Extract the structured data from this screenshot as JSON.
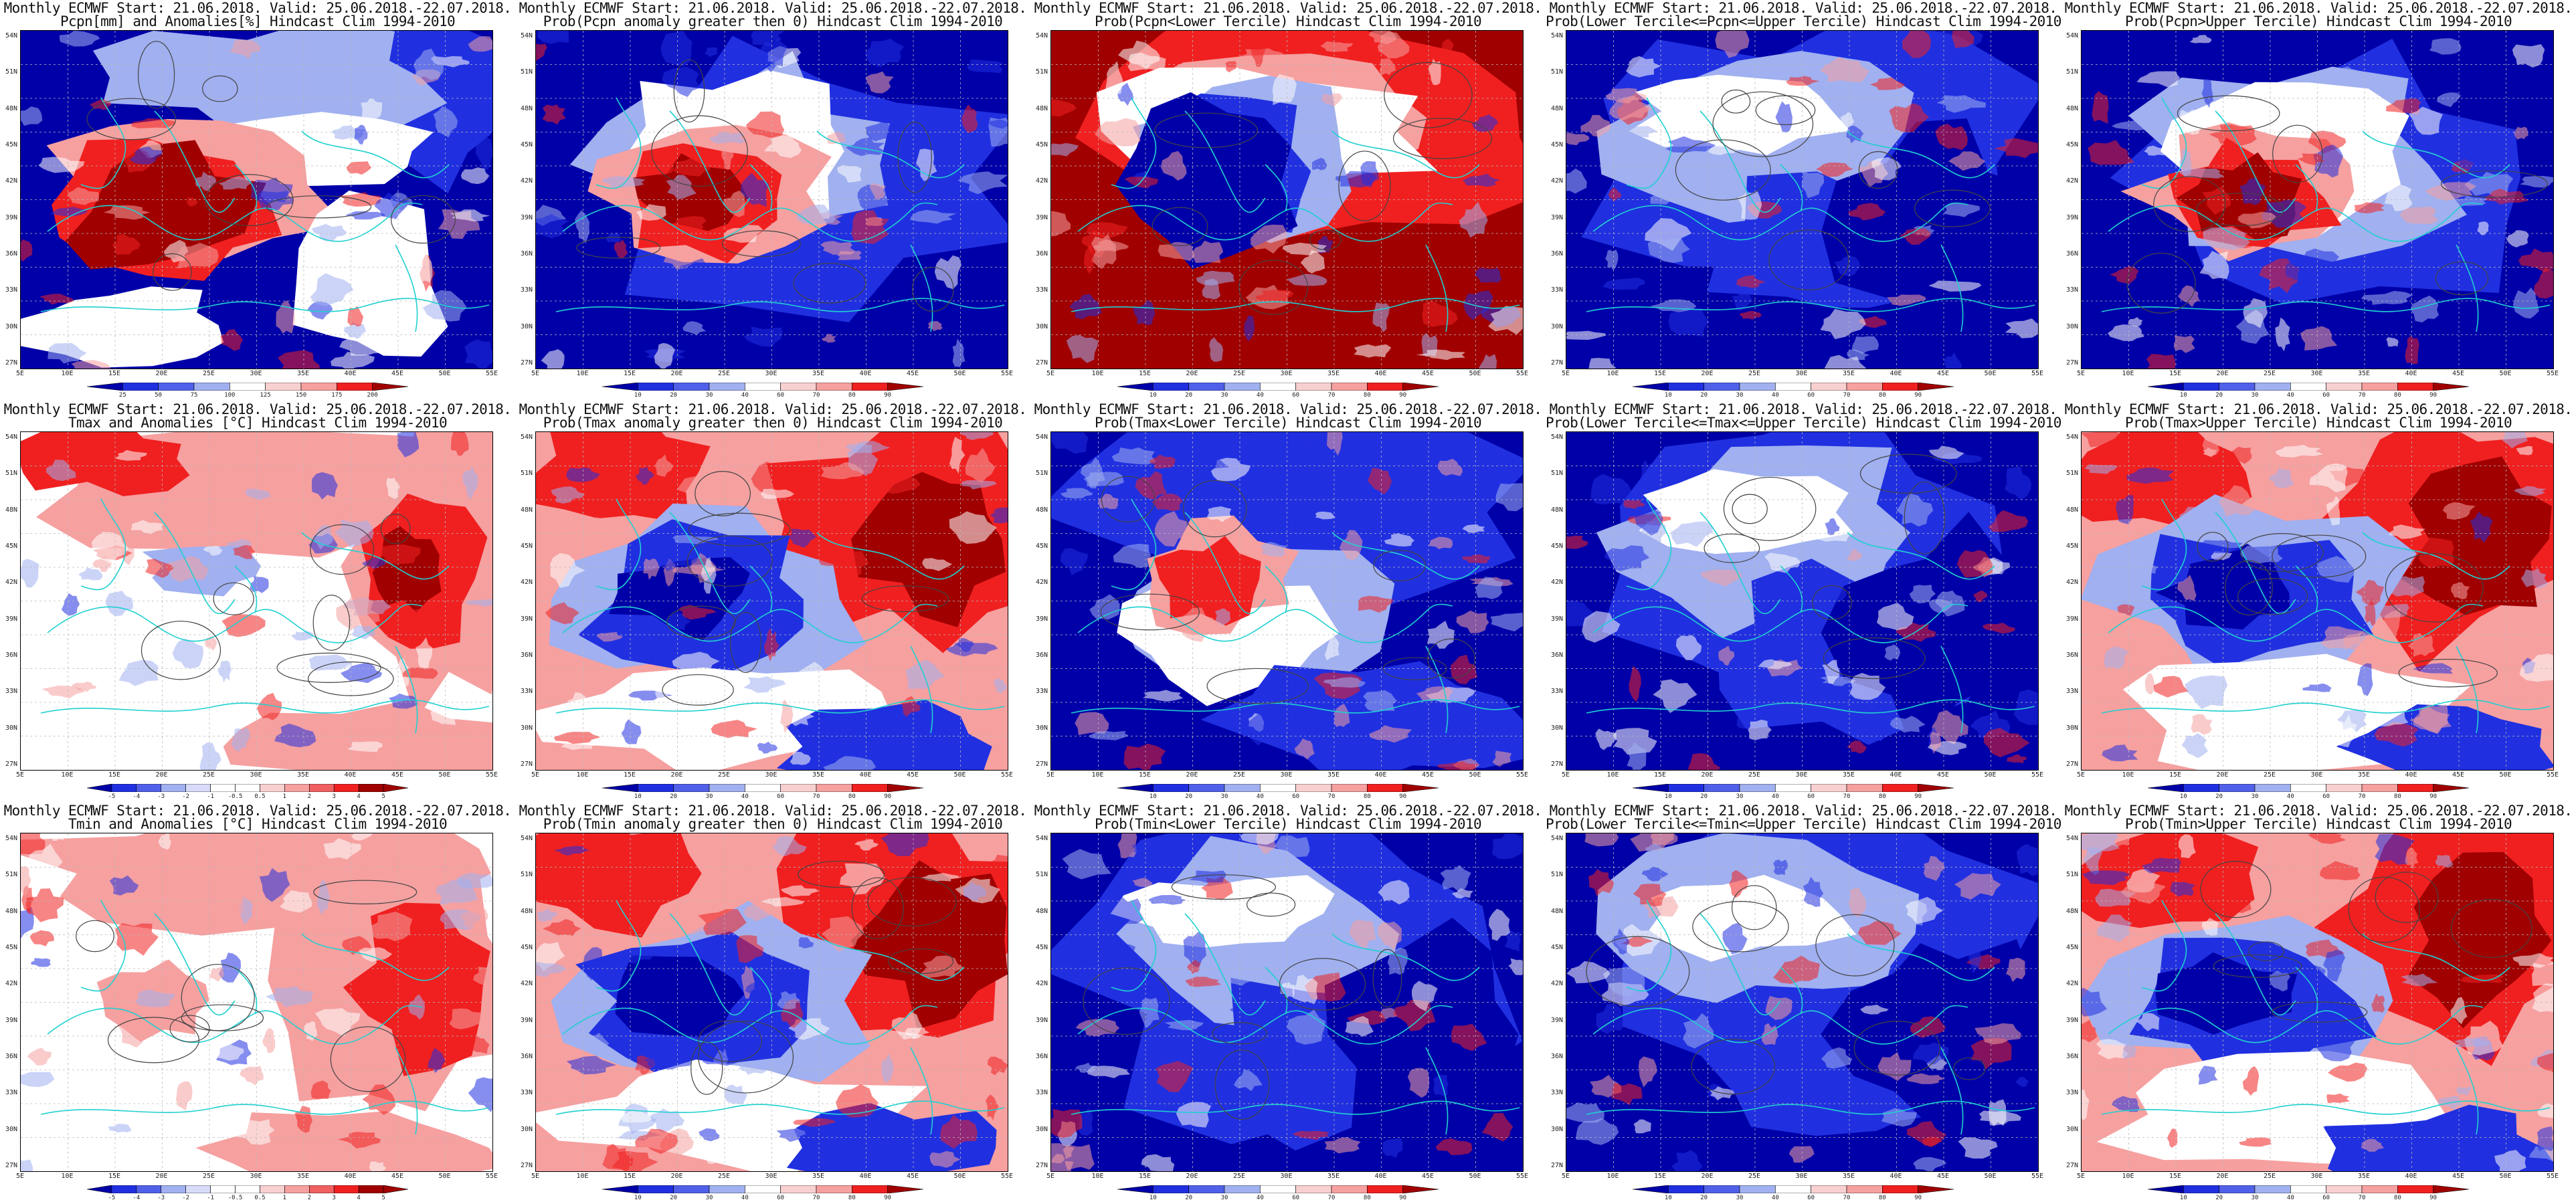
{
  "header": "Monthly ECMWF Start: 21.06.2018. Valid: 25.06.2018.-22.07.2018.",
  "lat_labels": [
    "54N",
    "51N",
    "48N",
    "45N",
    "42N",
    "39N",
    "36N",
    "33N",
    "30N",
    "27N"
  ],
  "lon_labels": [
    "5E",
    "10E",
    "15E",
    "20E",
    "25E",
    "30E",
    "35E",
    "40E",
    "45E",
    "50E",
    "55E"
  ],
  "colors": {
    "red_dark": "#a00000",
    "red": "#f02020",
    "red_light": "#f6a0a0",
    "white": "#ffffff",
    "blue_light": "#a0b0f0",
    "blue": "#2030e0",
    "blue_dark": "#0000a8",
    "coast": "#20d0d0",
    "contour": "#444444"
  },
  "panels": [
    {
      "title": "Pcpn[mm] and Anomalies[%] Hindcast Clim 1994-2010",
      "scheme": "precip_anom",
      "cbar": [
        "25",
        "50",
        "75",
        "100",
        "125",
        "150",
        "175",
        "200"
      ]
    },
    {
      "title": "Prob(Pcpn anomaly greater then 0) Hindcast Clim 1994-2010",
      "scheme": "red_center",
      "cbar": [
        "10",
        "20",
        "30",
        "40",
        "60",
        "70",
        "80",
        "90"
      ]
    },
    {
      "title": "Prob(Pcpn<Lower Tercile) Hindcast Clim 1994-2010",
      "scheme": "blue_center",
      "cbar": [
        "10",
        "20",
        "30",
        "40",
        "60",
        "70",
        "80",
        "90"
      ]
    },
    {
      "title": "Prob(Lower Tercile<=Pcpn<=Upper Tercile) Hindcast Clim 1994-2010",
      "scheme": "blue_all",
      "cbar": [
        "10",
        "20",
        "30",
        "40",
        "60",
        "70",
        "80",
        "90"
      ]
    },
    {
      "title": "Prob(Pcpn>Upper Tercile) Hindcast Clim 1994-2010",
      "scheme": "red_center",
      "cbar": [
        "10",
        "20",
        "30",
        "40",
        "60",
        "70",
        "80",
        "90"
      ]
    },
    {
      "title": "Tmax and Anomalies [°C] Hindcast Clim 1994-2010",
      "scheme": "temp_anom",
      "cbar": [
        "-5",
        "-4",
        "-3",
        "-2",
        "-1",
        "-0.5",
        "0.5",
        "1",
        "2",
        "3",
        "4",
        "5"
      ]
    },
    {
      "title": "Prob(Tmax anomaly greater then 0) Hindcast Clim 1994-2010",
      "scheme": "mixed_red",
      "cbar": [
        "10",
        "20",
        "30",
        "40",
        "60",
        "70",
        "80",
        "90"
      ]
    },
    {
      "title": "Prob(Tmax<Lower Tercile) Hindcast Clim 1994-2010",
      "scheme": "mixed_blue",
      "cbar": [
        "10",
        "20",
        "30",
        "40",
        "60",
        "70",
        "80",
        "90"
      ]
    },
    {
      "title": "Prob(Lower Tercile<=Tmax<=Upper Tercile) Hindcast Clim 1994-2010",
      "scheme": "blue_all",
      "cbar": [
        "10",
        "20",
        "30",
        "40",
        "60",
        "70",
        "80",
        "90"
      ]
    },
    {
      "title": "Prob(Tmax>Upper Tercile) Hindcast Clim 1994-2010",
      "scheme": "mixed_red",
      "cbar": [
        "10",
        "20",
        "30",
        "40",
        "60",
        "70",
        "80",
        "90"
      ]
    },
    {
      "title": "Tmin and Anomalies [°C] Hindcast Clim 1994-2010",
      "scheme": "temp_anom_light",
      "cbar": [
        "-5",
        "-4",
        "-3",
        "-2",
        "-1",
        "-0.5",
        "0.5",
        "1",
        "2",
        "3",
        "4",
        "5"
      ]
    },
    {
      "title": "Prob(Tmin anomaly greater then 0) Hindcast Clim 1994-2010",
      "scheme": "mixed_red",
      "cbar": [
        "10",
        "20",
        "30",
        "40",
        "60",
        "70",
        "80",
        "90"
      ]
    },
    {
      "title": "Prob(Tmin<Lower Tercile) Hindcast Clim 1994-2010",
      "scheme": "blue_all",
      "cbar": [
        "10",
        "20",
        "30",
        "40",
        "60",
        "70",
        "80",
        "90"
      ]
    },
    {
      "title": "Prob(Lower Tercile<=Tmin<=Upper Tercile) Hindcast Clim 1994-2010",
      "scheme": "blue_all",
      "cbar": [
        "10",
        "20",
        "30",
        "40",
        "60",
        "70",
        "80",
        "90"
      ]
    },
    {
      "title": "Prob(Tmin>Upper Tercile) Hindcast Clim 1994-2010",
      "scheme": "mixed_red",
      "cbar": [
        "10",
        "20",
        "30",
        "40",
        "60",
        "70",
        "80",
        "90"
      ]
    }
  ]
}
